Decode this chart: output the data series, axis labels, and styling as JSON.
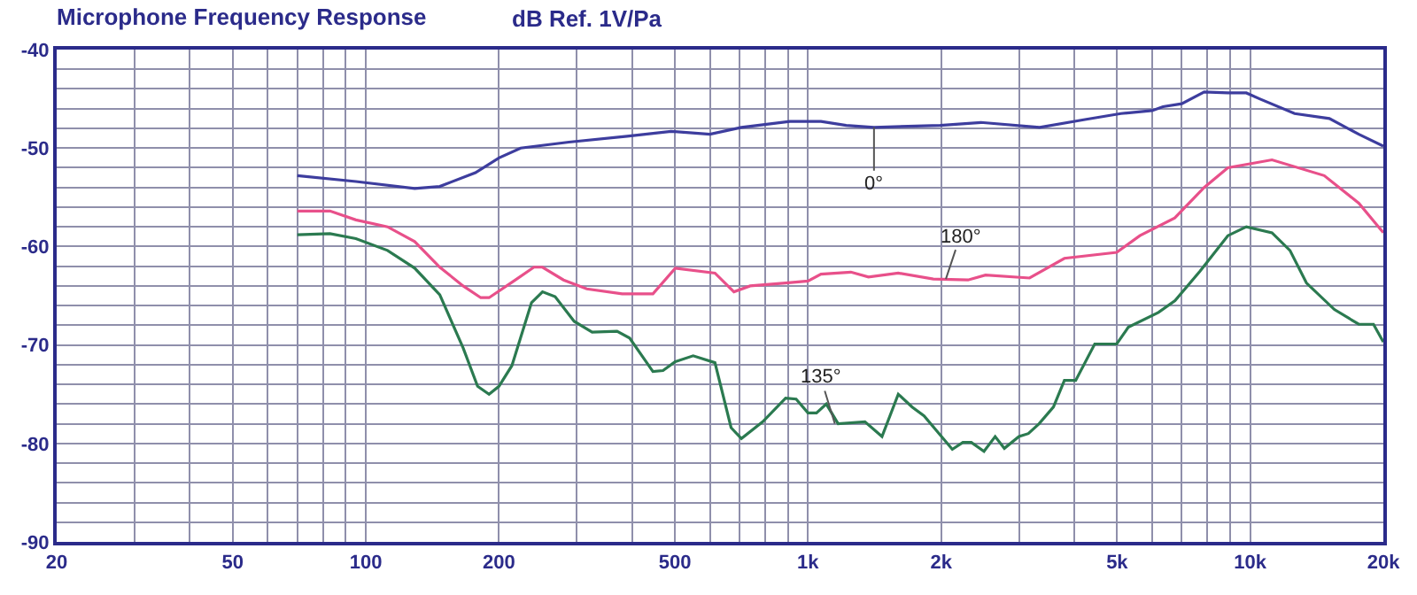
{
  "chart_data": {
    "type": "line",
    "title": "Microphone Frequency Response",
    "ylabel": "dB Ref. 1V/Pa",
    "log": "x",
    "grid": true,
    "marker": "none",
    "line_style": "solid",
    "xlim": [
      20,
      20000
    ],
    "ylim": [
      -90,
      -40
    ],
    "xticks": [
      20,
      {
        "value": 30,
        "label": null
      },
      {
        "value": 40,
        "label": null
      },
      50,
      {
        "value": 60,
        "label": null
      },
      {
        "value": 70,
        "label": null
      },
      {
        "value": 80,
        "label": null
      },
      {
        "value": 90,
        "label": null
      },
      100,
      200,
      {
        "value": 300,
        "label": null
      },
      {
        "value": 400,
        "label": null
      },
      500,
      {
        "value": 600,
        "label": null
      },
      {
        "value": 700,
        "label": null
      },
      {
        "value": 800,
        "label": null
      },
      {
        "value": 900,
        "label": null
      },
      {
        "value": 1000,
        "label": "1k"
      },
      {
        "value": 2000,
        "label": "2k"
      },
      {
        "value": 3000,
        "label": null
      },
      {
        "value": 4000,
        "label": null
      },
      {
        "value": 5000,
        "label": "5k"
      },
      {
        "value": 6000,
        "label": null
      },
      {
        "value": 7000,
        "label": null
      },
      {
        "value": 8000,
        "label": null
      },
      {
        "value": 9000,
        "label": null
      },
      {
        "value": 10000,
        "label": "10k"
      },
      {
        "value": 20000,
        "label": "20k"
      }
    ],
    "yticks": [
      -40,
      {
        "value": -42,
        "label": null
      },
      {
        "value": -44,
        "label": null
      },
      {
        "value": -46,
        "label": null
      },
      {
        "value": -48,
        "label": null
      },
      -50,
      {
        "value": -52,
        "label": null
      },
      {
        "value": -54,
        "label": null
      },
      {
        "value": -56,
        "label": null
      },
      {
        "value": -58,
        "label": null
      },
      -60,
      {
        "value": -62,
        "label": null
      },
      {
        "value": -64,
        "label": null
      },
      {
        "value": -66,
        "label": null
      },
      {
        "value": -68,
        "label": null
      },
      -70,
      {
        "value": -72,
        "label": null
      },
      {
        "value": -74,
        "label": null
      },
      {
        "value": -76,
        "label": null
      },
      {
        "value": -78,
        "label": null
      },
      -80,
      {
        "value": -82,
        "label": null
      },
      {
        "value": -84,
        "label": null
      },
      {
        "value": -86,
        "label": null
      },
      {
        "value": -88,
        "label": null
      },
      -90
    ],
    "series": [
      {
        "color": "#3d3d9e",
        "x": [
          70,
          95,
          129,
          147,
          177,
          200,
          224,
          288,
          390,
          490,
          600,
          707,
          910,
          1070,
          1220,
          1410,
          1990,
          2460,
          3340,
          4230,
          5100,
          6000,
          6350,
          7000,
          7870,
          8900,
          9800,
          10500,
          12600,
          15100,
          17600,
          20000
        ],
        "values": [
          -52.8,
          -53.4,
          -54.1,
          -53.9,
          -52.5,
          -51.0,
          -50.0,
          -49.4,
          -48.8,
          -48.3,
          -48.6,
          -47.9,
          -47.3,
          -47.3,
          -47.7,
          -47.9,
          -47.7,
          -47.4,
          -47.9,
          -47.1,
          -46.5,
          -46.2,
          -45.8,
          -45.5,
          -44.3,
          -44.4,
          -44.4,
          -45.0,
          -46.5,
          -47.0,
          -48.6,
          -49.8
        ]
      },
      {
        "color": "#e8508a",
        "x": [
          70,
          83,
          95,
          112,
          129,
          147,
          166,
          182,
          190,
          218,
          240,
          251,
          280,
          316,
          380,
          446,
          501,
          616,
          680,
          740,
          890,
          1000,
          1070,
          1250,
          1370,
          1600,
          1920,
          2300,
          2520,
          3170,
          3800,
          4990,
          5630,
          6750,
          7870,
          8900,
          11200,
          14700,
          17600,
          20000
        ],
        "values": [
          -56.4,
          -56.4,
          -57.3,
          -58.0,
          -59.5,
          -62.1,
          -64.0,
          -65.2,
          -65.2,
          -63.4,
          -62.1,
          -62.1,
          -63.4,
          -64.3,
          -64.8,
          -64.8,
          -62.2,
          -62.7,
          -64.6,
          -64.0,
          -63.7,
          -63.5,
          -62.8,
          -62.6,
          -63.1,
          -62.7,
          -63.3,
          -63.4,
          -62.9,
          -63.2,
          -61.2,
          -60.6,
          -58.9,
          -57.1,
          -54.0,
          -52.0,
          -51.2,
          -52.8,
          -55.6,
          -58.6
        ]
      },
      {
        "color": "#2b7a50",
        "x": [
          70,
          83,
          95,
          112,
          129,
          147,
          166,
          179,
          190,
          200,
          214,
          237,
          251,
          268,
          296,
          325,
          370,
          395,
          446,
          470,
          501,
          550,
          616,
          670,
          707,
          790,
          890,
          940,
          1000,
          1045,
          1100,
          1170,
          1345,
          1470,
          1600,
          1720,
          1830,
          2120,
          2240,
          2340,
          2500,
          2650,
          2780,
          3000,
          3150,
          3330,
          3590,
          3800,
          4030,
          4450,
          4990,
          5300,
          6200,
          6760,
          7700,
          8900,
          9800,
          11200,
          12300,
          13400,
          15500,
          17600,
          19000,
          20000
        ],
        "values": [
          -58.8,
          -58.7,
          -59.2,
          -60.4,
          -62.2,
          -64.9,
          -70.3,
          -74.2,
          -75.0,
          -74.2,
          -72.1,
          -65.7,
          -64.6,
          -65.1,
          -67.6,
          -68.7,
          -68.6,
          -69.3,
          -72.7,
          -72.6,
          -71.7,
          -71.1,
          -71.8,
          -78.4,
          -79.5,
          -77.8,
          -75.4,
          -75.5,
          -76.9,
          -76.9,
          -76.0,
          -78.0,
          -77.8,
          -79.3,
          -75.0,
          -76.3,
          -77.2,
          -80.6,
          -79.9,
          -79.9,
          -80.8,
          -79.3,
          -80.5,
          -79.3,
          -79.0,
          -78.0,
          -76.3,
          -73.6,
          -73.6,
          -69.9,
          -69.9,
          -68.2,
          -66.7,
          -65.5,
          -62.5,
          -58.9,
          -58.0,
          -58.6,
          -60.4,
          -63.7,
          -66.4,
          -67.9,
          -67.9,
          -69.7
        ]
      }
    ],
    "annotations": [
      {
        "text": "0°",
        "x": 1410,
        "y": -47.9
      },
      {
        "text": "180°",
        "x": 2050,
        "y": -63.3
      },
      {
        "text": "135°",
        "x": 1150,
        "y": -78
      }
    ]
  }
}
